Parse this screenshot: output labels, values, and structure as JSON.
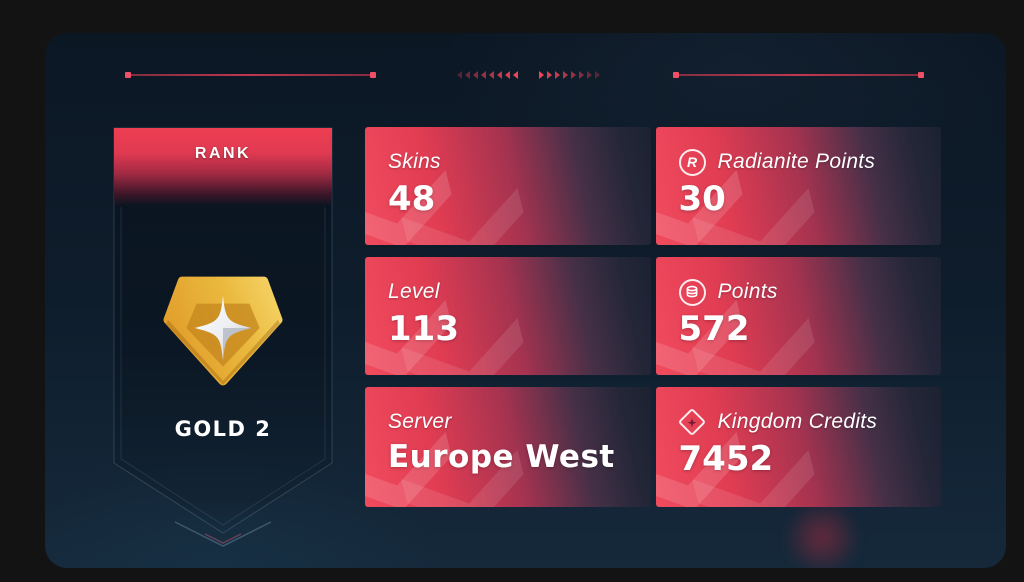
{
  "rank_panel": {
    "header": "RANK",
    "rank_name": "GOLD 2",
    "badge": "gold-2-pentagon-star-badge"
  },
  "stats": [
    {
      "id": "skins",
      "label": "Skins",
      "value": "48",
      "icon": "none"
    },
    {
      "id": "radianite",
      "label": "Radianite Points",
      "value": "30",
      "icon": "radianite-icon"
    },
    {
      "id": "level",
      "label": "Level",
      "value": "113",
      "icon": "none"
    },
    {
      "id": "points",
      "label": "Points",
      "value": "572",
      "icon": "points-coin-icon"
    },
    {
      "id": "server",
      "label": "Server",
      "value": "Europe West",
      "icon": "none"
    },
    {
      "id": "kingdom_credits",
      "label": "Kingdom Credits",
      "value": "7452",
      "icon": "kingdom-credits-icon"
    }
  ],
  "icons": {
    "radianite_glyph": "R"
  },
  "colors": {
    "outer_background": "#131313",
    "panel_background": "#0e1d2c",
    "accent_red": "#ef4458",
    "card_red": "#f14b5e",
    "card_dark": "#1c2231",
    "banner_red": "#ee3e53",
    "badge_gold_light": "#f4cf5f",
    "badge_gold_dark": "#dd9b2b",
    "text": "#ffffff"
  }
}
